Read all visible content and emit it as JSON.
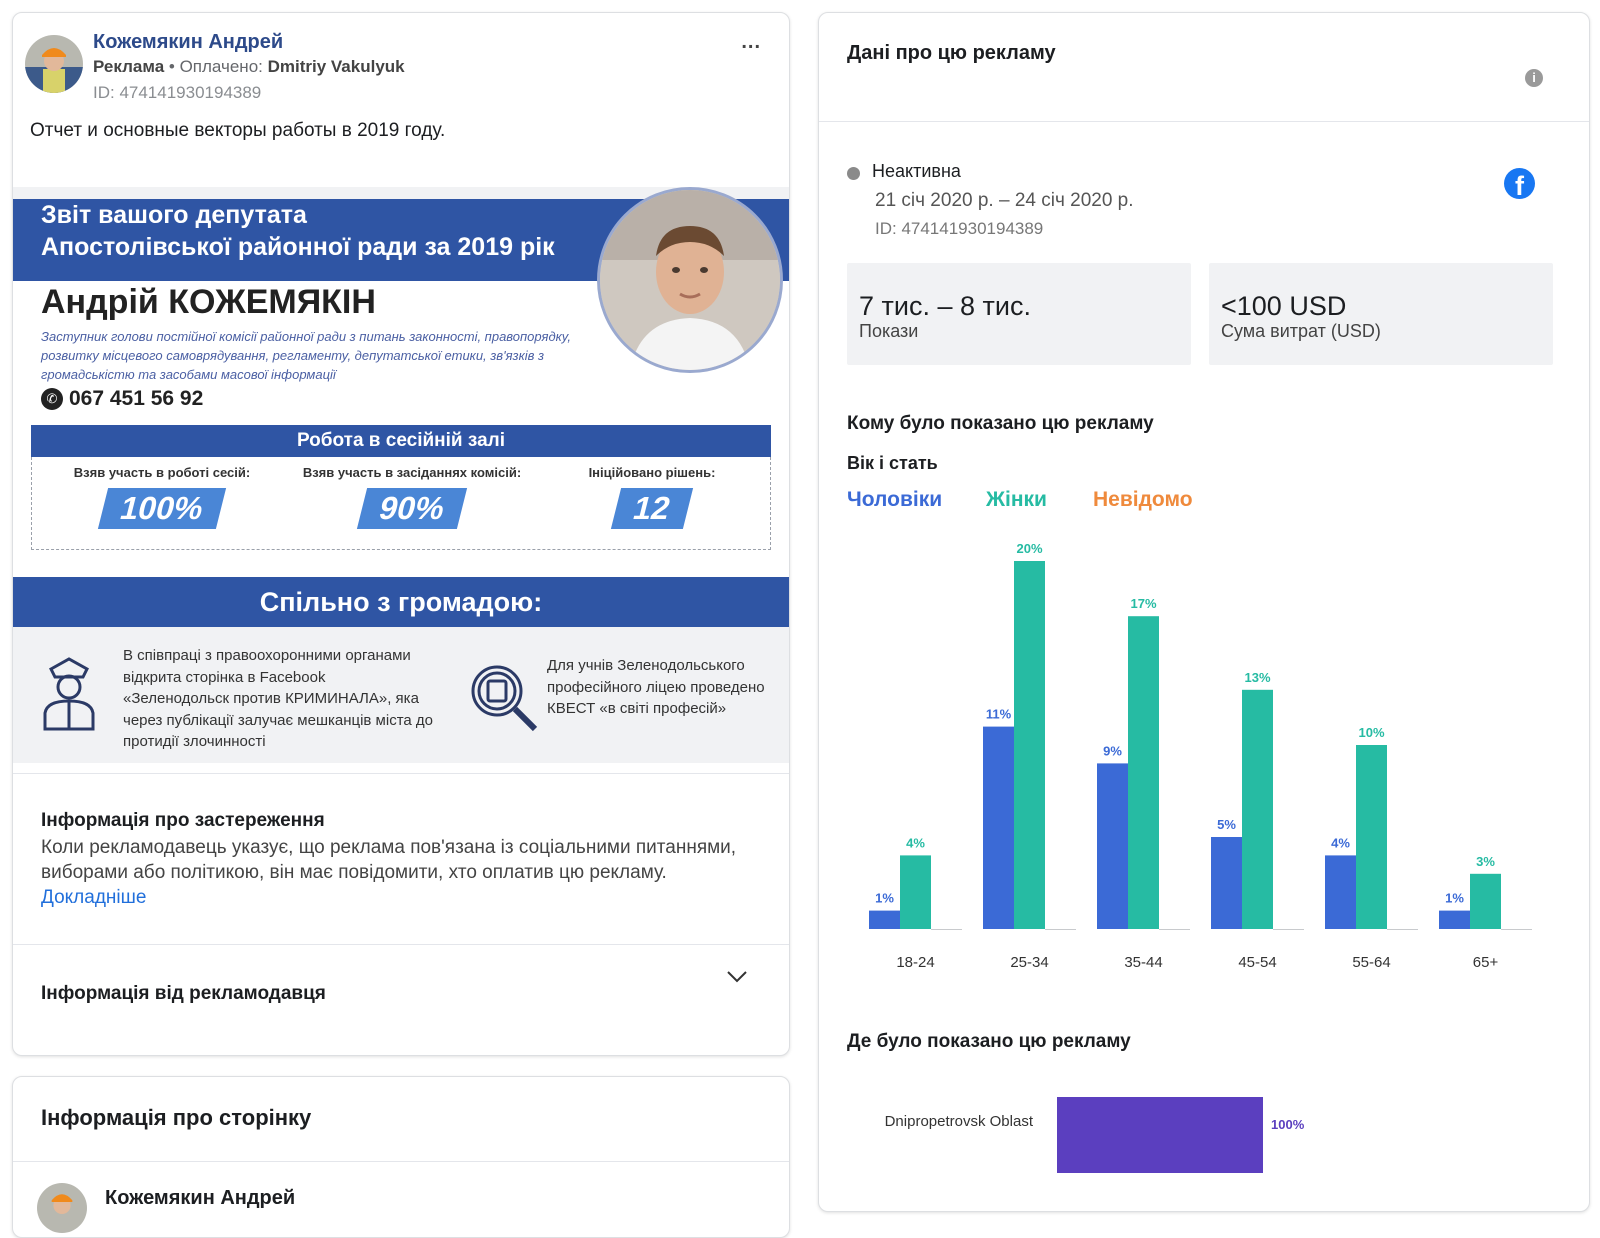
{
  "ad": {
    "advertiser_name": "Кожемякин Андрей",
    "sponsored_label": "Реклама",
    "paid_by_prefix": "• Оплачено:",
    "paid_by_name": "Dmitriy Vakulyuk",
    "ad_id_line": "ID: 474141930194389",
    "more_icon": "...",
    "post_text": "Отчет и основные векторы работы в 2019 году."
  },
  "creative": {
    "header_line1": "Звіт вашого депутата",
    "header_line2": "Апостолівської районної ради за 2019 рік",
    "deputy_name": "Андрій КОЖЕМЯКІН",
    "deputy_description": "Заступник голови постійної комісії районної ради з питань законності, правопорядку, розвитку місцевого самоврядування, регламенту, депутатської етики, зв'язків з громадськістю та засобами масової інформації",
    "phone": "067 451 56 92",
    "session_title": "Робота в сесійній залі",
    "stats": [
      {
        "label": "Взяв участь в роботі сесій:",
        "value": "100%"
      },
      {
        "label": "Взяв участь в засіданнях комісій:",
        "value": "90%"
      },
      {
        "label": "Ініційовано рішень:",
        "value": "12"
      }
    ],
    "community_title": "Спільно з громадою:",
    "community_left": "В співпраці з правоохоронними органами відкрита сторінка в Facebook «Зеленодольск против КРИМИНАЛА», яка через публікації залучає мешканців міста до протидії злочинності",
    "community_right": "Для учнів Зеленодольського професійного ліцею проведено КВЕСТ «в світі професій»"
  },
  "disclaimer": {
    "title": "Інформація про застереження",
    "text": "Коли рекламодавець указує, що реклама пов'язана із соціальними питаннями, виборами або політикою, він має повідомити, хто оплатив цю рекламу.",
    "link": "Докладніше"
  },
  "advertiser_info": {
    "title": "Інформація від рекламодавця"
  },
  "page_info": {
    "title": "Інформація про сторінку",
    "page_name": "Кожемякин Андрей"
  },
  "ad_info": {
    "title": "Дані про цю рекламу",
    "info_icon": "i",
    "status": "Неактивна",
    "dates": "21 січ 2020 р. – 24 січ 2020 р.",
    "ad_id_line": "ID: 474141930194389",
    "fb_icon": "f",
    "impressions_value": "7 тис. – 8 тис.",
    "impressions_label": "Покази",
    "spend_value": "<100 USD",
    "spend_label": "Сума витрат (USD)",
    "audience_title": "Кому було показано цю рекламу",
    "age_gender_title": "Вік і стать",
    "legend": [
      {
        "name": "Чоловіки",
        "color": "#3b6ad6"
      },
      {
        "name": "Жінки",
        "color": "#26bba3"
      },
      {
        "name": "Невідомо",
        "color": "#ef8a3c"
      }
    ],
    "region_title": "Де було показано цю рекламу"
  },
  "chart_data": [
    {
      "type": "bar",
      "categories": [
        "18-24",
        "25-34",
        "35-44",
        "45-54",
        "55-64",
        "65+"
      ],
      "series": [
        {
          "name": "Чоловіки",
          "color": "#3b6ad6",
          "values": [
            1,
            11,
            9,
            5,
            4,
            1
          ],
          "labels": [
            "1%",
            "11%",
            "9%",
            "5%",
            "4%",
            "1%"
          ]
        },
        {
          "name": "Жінки",
          "color": "#26bba3",
          "values": [
            4,
            20,
            17,
            13,
            10,
            3
          ],
          "labels": [
            "4%",
            "20%",
            "17%",
            "13%",
            "10%",
            "3%"
          ]
        },
        {
          "name": "Невідомо",
          "color": "#ef8a3c",
          "values": [
            0,
            0,
            0,
            0,
            0,
            0
          ],
          "labels": [
            "",
            "",
            "",
            "",
            "",
            ""
          ]
        }
      ],
      "title": "Вік і стать",
      "ylim": [
        0,
        20
      ],
      "legend_position": "top-left",
      "grid": false
    },
    {
      "type": "bar",
      "orientation": "horizontal",
      "categories": [
        "Dnipropetrovsk Oblast"
      ],
      "values": [
        100
      ],
      "labels": [
        "100%"
      ],
      "color": "#5b3fbf",
      "title": "Де було показано цю рекламу",
      "xlim": [
        0,
        100
      ]
    }
  ]
}
